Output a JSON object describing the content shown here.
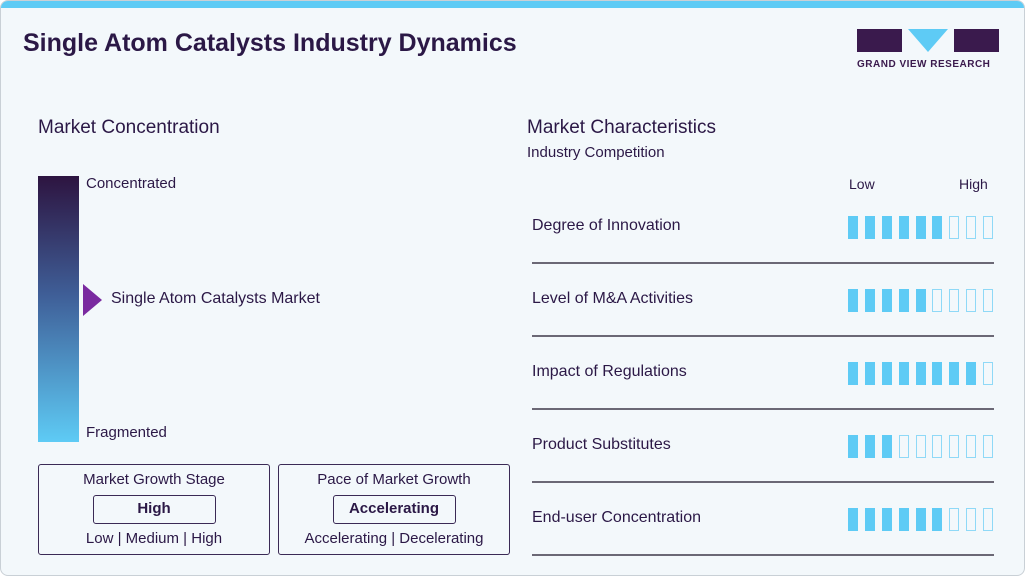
{
  "title": "Single Atom Catalysts Industry Dynamics",
  "logo": {
    "text": "GRAND VIEW RESEARCH"
  },
  "colors": {
    "accent": "#5ecbf5",
    "primary": "#2b1846",
    "marker": "#7a2aa0"
  },
  "concentration": {
    "heading": "Market Concentration",
    "top": "Concentrated",
    "bottom": "Fragmented",
    "marker_label": "Single Atom Catalysts Market"
  },
  "growth_stage": {
    "title": "Market Growth Stage",
    "value": "High",
    "options": "Low | Medium | High"
  },
  "pace": {
    "title": "Pace of Market Growth",
    "value": "Accelerating",
    "options": "Accelerating | Decelerating"
  },
  "characteristics": {
    "heading": "Market Characteristics",
    "subheading": "Industry Competition",
    "low": "Low",
    "high": "High",
    "max": 9,
    "rows": [
      {
        "label": "Degree of Innovation",
        "level": 6
      },
      {
        "label": "Level of M&A Activities",
        "level": 5
      },
      {
        "label": "Impact of Regulations",
        "level": 8
      },
      {
        "label": "Product Substitutes",
        "level": 3
      },
      {
        "label": "End-user Concentration",
        "level": 6
      }
    ]
  }
}
